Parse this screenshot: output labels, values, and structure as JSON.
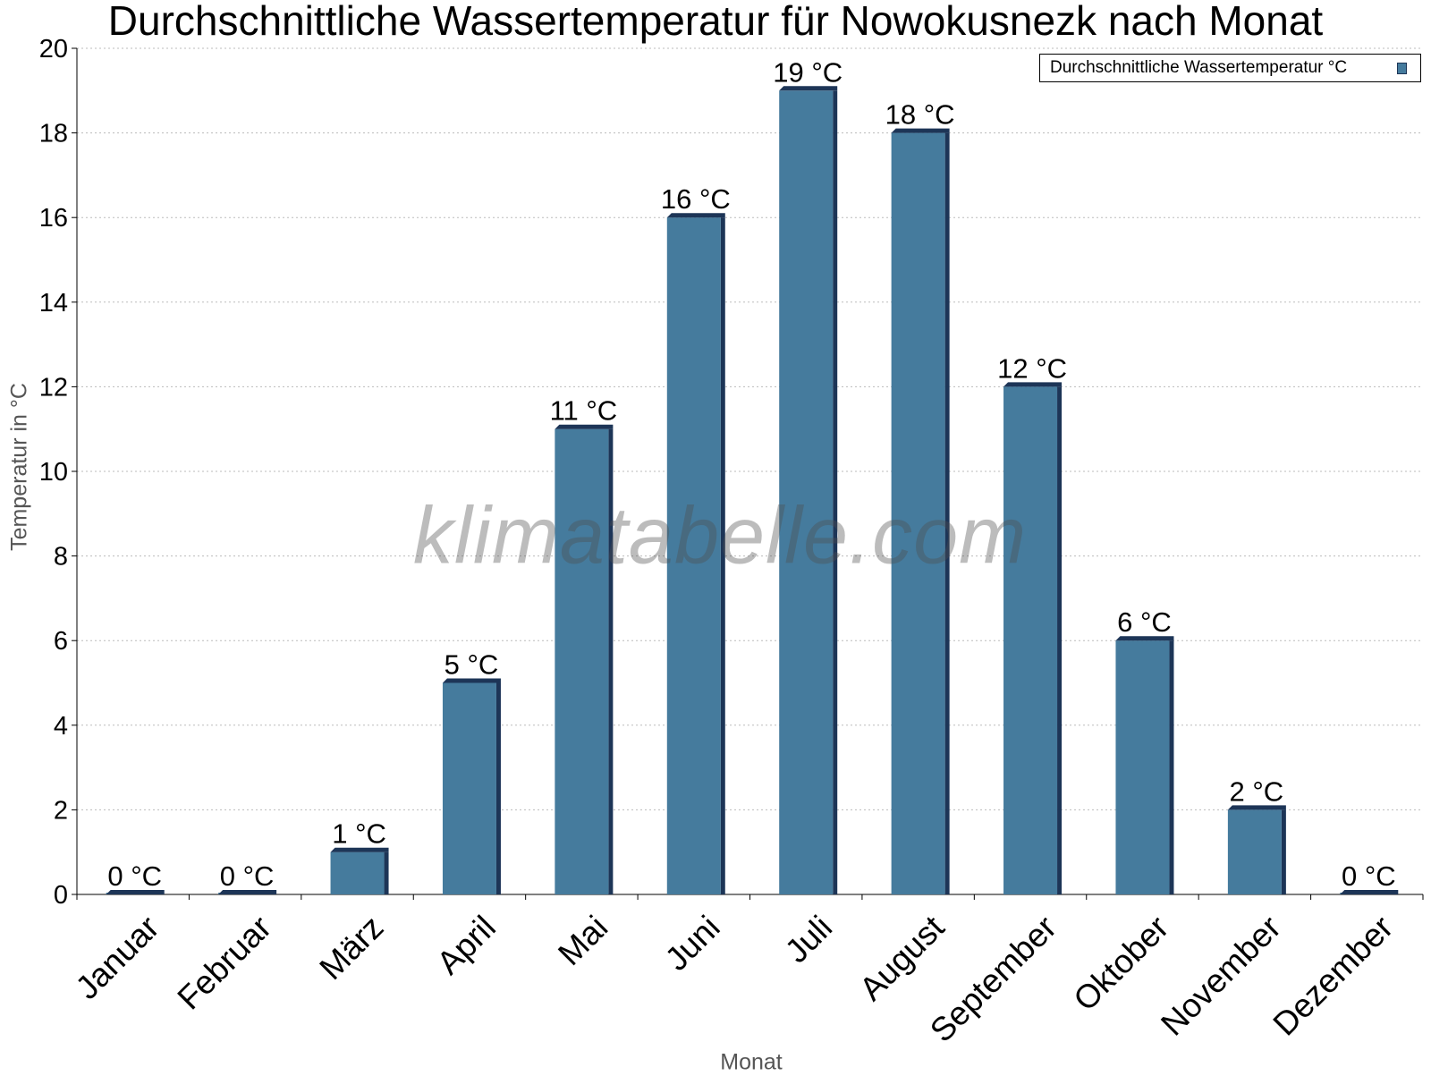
{
  "chart_data": {
    "type": "bar",
    "title": "Durchschnittliche Wassertemperatur für Nowokusnezk nach Monat",
    "xlabel": "Monat",
    "ylabel": "Temperatur in °C",
    "ylim": [
      0,
      20
    ],
    "yticks": [
      0,
      2,
      4,
      6,
      8,
      10,
      12,
      14,
      16,
      18,
      20
    ],
    "grid": "horizontal dotted",
    "legend_position": "top-right",
    "categories": [
      "Januar",
      "Februar",
      "März",
      "April",
      "Mai",
      "Juni",
      "Juli",
      "August",
      "September",
      "Oktober",
      "November",
      "Dezember"
    ],
    "series": [
      {
        "name": "Durchschnittliche Wassertemperatur °C",
        "values": [
          0,
          0,
          1,
          5,
          11,
          16,
          19,
          18,
          12,
          6,
          2,
          0
        ],
        "labels": [
          "0 °C",
          "0 °C",
          "1 °C",
          "5 °C",
          "11 °C",
          "16 °C",
          "19 °C",
          "18 °C",
          "12 °C",
          "6 °C",
          "2 °C",
          "0 °C"
        ]
      }
    ],
    "colors": {
      "bar": "#457b9d",
      "bar_edge": "#1d3557",
      "grid": "#bbbbbb"
    },
    "watermark": "klimatabelle.com"
  }
}
